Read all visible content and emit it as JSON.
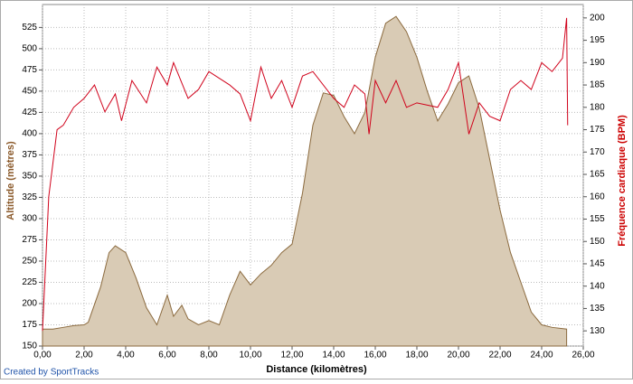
{
  "chart_data": {
    "type": "line",
    "xlabel": "Distance (kilomètres)",
    "ylabel": "Altitude (mètres)",
    "y2label": "Fréquence cardiaque (BPM)",
    "credit": "Created by SportTracks",
    "xlim": [
      0,
      26
    ],
    "ylim": [
      150,
      552
    ],
    "y2lim": [
      126.6,
      203
    ],
    "xticks": [
      {
        "value": 0,
        "label": "0,00"
      },
      {
        "value": 2,
        "label": "2,00"
      },
      {
        "value": 4,
        "label": "4,00"
      },
      {
        "value": 6,
        "label": "6,00"
      },
      {
        "value": 8,
        "label": "8,00"
      },
      {
        "value": 10,
        "label": "10,00"
      },
      {
        "value": 12,
        "label": "12,00"
      },
      {
        "value": 14,
        "label": "14,00"
      },
      {
        "value": 16,
        "label": "16,00"
      },
      {
        "value": 18,
        "label": "18,00"
      },
      {
        "value": 20,
        "label": "20,00"
      },
      {
        "value": 22,
        "label": "22,00"
      },
      {
        "value": 24,
        "label": "24,00"
      },
      {
        "value": 26,
        "label": "26,00"
      }
    ],
    "yticks": [
      150,
      175,
      200,
      225,
      250,
      275,
      300,
      325,
      350,
      375,
      400,
      425,
      450,
      475,
      500,
      525
    ],
    "y2ticks": [
      130,
      135,
      140,
      145,
      150,
      155,
      160,
      165,
      170,
      175,
      180,
      185,
      190,
      195,
      200
    ],
    "grid": true,
    "series": [
      {
        "style": "area",
        "color": "#8b6a3e",
        "fill": "#d9cbb5",
        "axis": "y",
        "x": [
          0,
          0.5,
          1,
          1.5,
          2,
          2.2,
          2.8,
          3.2,
          3.5,
          4,
          4.5,
          5,
          5.5,
          6,
          6.3,
          6.7,
          7,
          7.5,
          8,
          8.5,
          9,
          9.5,
          10,
          10.5,
          11,
          11.5,
          12,
          12.5,
          13,
          13.5,
          14,
          14.5,
          15,
          15.5,
          16,
          16.5,
          17,
          17.5,
          18,
          18.5,
          19,
          19.5,
          20,
          20.5,
          21,
          21.5,
          22,
          22.5,
          23,
          23.5,
          24,
          24.5,
          25.2
        ],
        "values": [
          170,
          170,
          172,
          174,
          175,
          178,
          220,
          260,
          268,
          260,
          230,
          195,
          175,
          210,
          185,
          198,
          182,
          175,
          180,
          175,
          210,
          238,
          222,
          235,
          245,
          260,
          270,
          330,
          410,
          448,
          445,
          420,
          400,
          425,
          490,
          530,
          538,
          520,
          490,
          450,
          415,
          435,
          460,
          468,
          430,
          370,
          310,
          260,
          225,
          190,
          175,
          172,
          170
        ]
      },
      {
        "style": "line",
        "color": "#d0021b",
        "axis": "y2",
        "x": [
          0,
          0.3,
          0.7,
          1,
          1.5,
          2,
          2.5,
          3,
          3.5,
          3.8,
          4.3,
          5,
          5.5,
          6,
          6.3,
          7,
          7.5,
          8,
          9,
          9.5,
          10,
          10.5,
          11,
          11.5,
          12,
          12.5,
          13,
          14,
          14.5,
          15,
          15.5,
          15.7,
          16,
          16.5,
          17,
          17.5,
          18,
          19,
          19.5,
          20,
          20.5,
          21,
          21.5,
          22,
          22.5,
          23,
          23.5,
          24,
          24.5,
          25,
          25.2,
          25.25
        ],
        "values": [
          130,
          160,
          175,
          176,
          180,
          182,
          185,
          179,
          183,
          177,
          186,
          181,
          189,
          185,
          190,
          182,
          184,
          188,
          185,
          183,
          177,
          189,
          182,
          186,
          180,
          187,
          188,
          182,
          180,
          185,
          183,
          174,
          186,
          181,
          186,
          180,
          181,
          180,
          184,
          190,
          174,
          181,
          178,
          177,
          184,
          186,
          184,
          190,
          188,
          191,
          200,
          176
        ]
      }
    ]
  }
}
